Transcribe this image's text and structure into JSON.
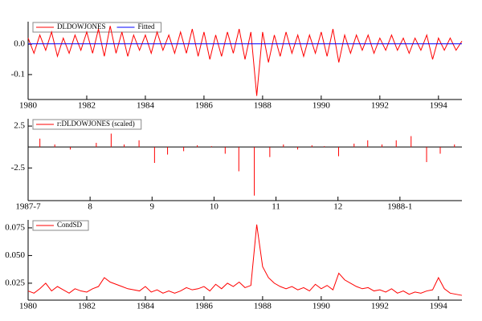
{
  "chart_data": [
    {
      "type": "line",
      "x": [
        1980,
        1980.2,
        1980.4,
        1980.6,
        1980.8,
        1981,
        1981.2,
        1981.4,
        1981.6,
        1981.8,
        1982,
        1982.2,
        1982.4,
        1982.6,
        1982.8,
        1983,
        1983.2,
        1983.4,
        1983.6,
        1983.8,
        1984,
        1984.2,
        1984.4,
        1984.6,
        1984.8,
        1985,
        1985.2,
        1985.4,
        1985.6,
        1985.8,
        1986,
        1986.2,
        1986.4,
        1986.6,
        1986.8,
        1987,
        1987.2,
        1987.4,
        1987.6,
        1987.8,
        1988,
        1988.2,
        1988.4,
        1988.6,
        1988.8,
        1989,
        1989.2,
        1989.4,
        1989.6,
        1989.8,
        1990,
        1990.2,
        1990.4,
        1990.6,
        1990.8,
        1991,
        1991.2,
        1991.4,
        1991.6,
        1991.8,
        1992,
        1992.2,
        1992.4,
        1992.6,
        1992.8,
        1993,
        1993.2,
        1993.4,
        1993.6,
        1993.8,
        1994,
        1994.2,
        1994.4,
        1994.6,
        1994.8
      ],
      "series": [
        {
          "name": "DLDOWJONES",
          "color": "#ff0000",
          "values": [
            0.02,
            -0.03,
            0.03,
            -0.02,
            0.04,
            -0.04,
            0.02,
            -0.03,
            0.03,
            -0.02,
            0.04,
            -0.03,
            0.05,
            -0.04,
            0.06,
            -0.03,
            0.04,
            -0.04,
            0.03,
            -0.02,
            0.03,
            -0.03,
            0.04,
            -0.02,
            0.03,
            -0.03,
            0.04,
            -0.03,
            0.05,
            -0.04,
            0.04,
            -0.05,
            0.03,
            -0.04,
            0.04,
            -0.03,
            0.05,
            -0.05,
            0.04,
            -0.17,
            0.04,
            -0.06,
            0.03,
            -0.04,
            0.04,
            -0.03,
            0.03,
            -0.04,
            0.03,
            -0.03,
            0.04,
            -0.04,
            0.05,
            -0.06,
            0.03,
            -0.03,
            0.03,
            -0.02,
            0.03,
            -0.03,
            0.02,
            -0.02,
            0.03,
            -0.02,
            0.02,
            -0.03,
            0.02,
            -0.02,
            0.03,
            -0.05,
            0.02,
            -0.02,
            0.02,
            -0.02,
            0.01
          ]
        },
        {
          "name": "Fitted",
          "color": "#0000ff",
          "values": [
            0.001,
            0.001,
            0.001,
            0.001,
            0.001,
            0.001,
            0.001,
            0.001,
            0.001,
            0.001,
            0.001,
            0.001,
            0.001,
            0.001,
            0.001,
            0.001,
            0.001,
            0.001,
            0.001,
            0.001,
            0.001,
            0.001,
            0.001,
            0.001,
            0.001,
            0.001,
            0.001,
            0.001,
            0.001,
            0.001,
            0.001,
            0.001,
            0.001,
            0.001,
            0.001,
            0.001,
            0.001,
            0.001,
            0.001,
            0.001,
            0.001,
            0.001,
            0.001,
            0.001,
            0.001,
            0.001,
            0.001,
            0.001,
            0.001,
            0.001,
            0.001,
            0.001,
            0.001,
            0.001,
            0.001,
            0.001,
            0.001,
            0.001,
            0.001,
            0.001,
            0.001,
            0.001,
            0.001,
            0.001,
            0.001,
            0.001,
            0.001,
            0.001,
            0.001,
            0.001,
            0.001,
            0.001,
            0.001,
            0.001,
            0.001
          ]
        }
      ],
      "xlim": [
        1980,
        1994.8
      ],
      "xticks": [
        1980,
        1982,
        1984,
        1986,
        1988,
        1990,
        1992,
        1994
      ],
      "ylim": [
        -0.182,
        0.074
      ],
      "yticks": [
        {
          "value": 0,
          "label": "0.0"
        },
        -0.1
      ]
    },
    {
      "type": "bar",
      "x": [
        7.19,
        7.43,
        7.68,
        8.1,
        8.34,
        8.55,
        8.79,
        9.04,
        9.25,
        9.51,
        9.73,
        9.96,
        10.18,
        10.4,
        10.65,
        10.9,
        11.12,
        11.35,
        11.58,
        11.78,
        12.01,
        12.26,
        12.48,
        12.71,
        12.94,
        13.18,
        13.43,
        13.65,
        13.88
      ],
      "series": [
        {
          "name": "r:DLDOWJONES (scaled)",
          "color": "#ff0000",
          "values": [
            1.0,
            0.3,
            -0.3,
            0.5,
            1.6,
            0.3,
            0.8,
            -1.9,
            -0.9,
            -0.5,
            0.2,
            0.1,
            -0.8,
            -2.9,
            -5.8,
            -1.2,
            0.3,
            -0.3,
            0.2,
            0.1,
            -1.1,
            0.4,
            0.8,
            0.3,
            0.8,
            1.3,
            -1.8,
            -0.8,
            0.3
          ]
        }
      ],
      "xlim": [
        7,
        14
      ],
      "xticks": [
        {
          "value": 7,
          "label": "1987-7"
        },
        8,
        9,
        10,
        11,
        12,
        {
          "value": 13,
          "label": "1988-1"
        }
      ],
      "ylim": [
        -6.4,
        3.37
      ],
      "yticks": [
        2.5,
        -2.5
      ]
    },
    {
      "type": "line",
      "x": [
        1980,
        1980.2,
        1980.4,
        1980.6,
        1980.8,
        1981,
        1981.2,
        1981.4,
        1981.6,
        1981.8,
        1982,
        1982.2,
        1982.4,
        1982.6,
        1982.8,
        1983,
        1983.2,
        1983.4,
        1983.6,
        1983.8,
        1984,
        1984.2,
        1984.4,
        1984.6,
        1984.8,
        1985,
        1985.2,
        1985.4,
        1985.6,
        1985.8,
        1986,
        1986.2,
        1986.4,
        1986.6,
        1986.8,
        1987,
        1987.2,
        1987.4,
        1987.6,
        1987.8,
        1988,
        1988.2,
        1988.4,
        1988.6,
        1988.8,
        1989,
        1989.2,
        1989.4,
        1989.6,
        1989.8,
        1990,
        1990.2,
        1990.4,
        1990.6,
        1990.8,
        1991,
        1991.2,
        1991.4,
        1991.6,
        1991.8,
        1992,
        1992.2,
        1992.4,
        1992.6,
        1992.8,
        1993,
        1993.2,
        1993.4,
        1993.6,
        1993.8,
        1994,
        1994.2,
        1994.4,
        1994.6,
        1994.8
      ],
      "series": [
        {
          "name": "CondSD",
          "color": "#ff0000",
          "values": [
            0.018,
            0.016,
            0.02,
            0.025,
            0.018,
            0.022,
            0.019,
            0.016,
            0.02,
            0.018,
            0.017,
            0.02,
            0.022,
            0.03,
            0.026,
            0.024,
            0.022,
            0.02,
            0.019,
            0.018,
            0.022,
            0.017,
            0.019,
            0.016,
            0.018,
            0.016,
            0.018,
            0.021,
            0.019,
            0.02,
            0.022,
            0.018,
            0.024,
            0.02,
            0.025,
            0.022,
            0.026,
            0.021,
            0.023,
            0.078,
            0.04,
            0.03,
            0.025,
            0.022,
            0.02,
            0.022,
            0.019,
            0.021,
            0.018,
            0.024,
            0.02,
            0.023,
            0.019,
            0.034,
            0.028,
            0.025,
            0.022,
            0.02,
            0.021,
            0.018,
            0.019,
            0.017,
            0.02,
            0.016,
            0.018,
            0.015,
            0.017,
            0.016,
            0.018,
            0.019,
            0.03,
            0.02,
            0.016,
            0.015,
            0.014
          ]
        }
      ],
      "xlim": [
        1980,
        1994.8
      ],
      "xticks": [
        1980,
        1982,
        1984,
        1986,
        1988,
        1990,
        1992,
        1994
      ],
      "ylim": [
        0.0097,
        0.0822
      ],
      "yticks": [
        0.075,
        {
          "value": 0.05,
          "label": "0.050"
        },
        0.025
      ]
    }
  ]
}
